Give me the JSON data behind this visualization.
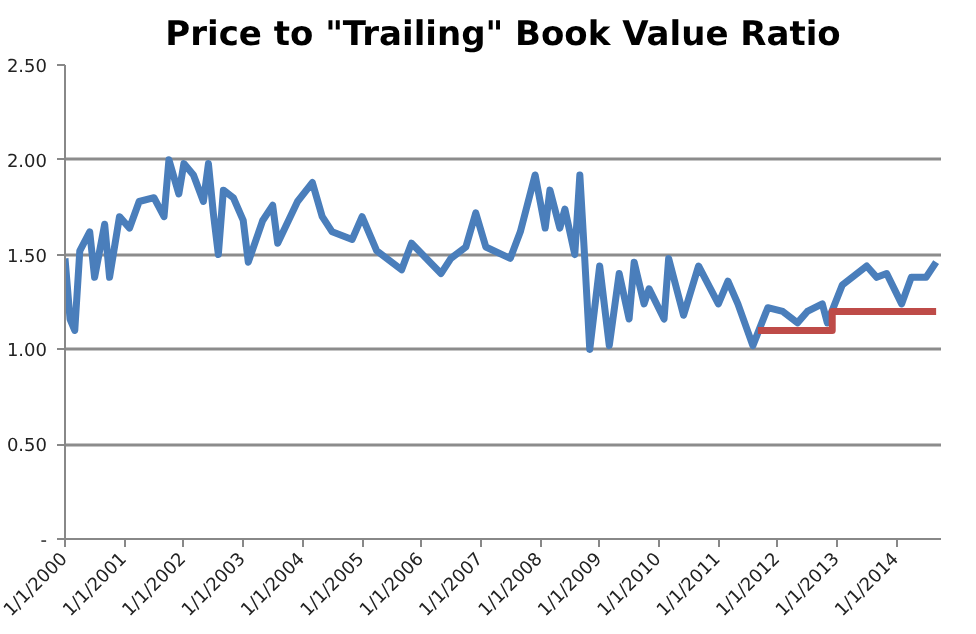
{
  "chart_data": {
    "type": "line",
    "title": "Price to \"Trailing\" Book Value Ratio",
    "series": [
      {
        "color": "#4a7ebb",
        "x": [
          "2000-01",
          "2000-02",
          "2000-03",
          "2000-04",
          "2000-06",
          "2000-07",
          "2000-09",
          "2000-10",
          "2000-12",
          "2001-02",
          "2001-04",
          "2001-07",
          "2001-09",
          "2001-10",
          "2001-12",
          "2002-01",
          "2002-03",
          "2002-05",
          "2002-06",
          "2002-07",
          "2002-08",
          "2002-09",
          "2002-11",
          "2003-01",
          "2003-02",
          "2003-05",
          "2003-07",
          "2003-08",
          "2003-12",
          "2004-03",
          "2004-05",
          "2004-07",
          "2004-11",
          "2005-01",
          "2005-04",
          "2005-09",
          "2005-11",
          "2006-05",
          "2006-07",
          "2006-10",
          "2006-12",
          "2007-02",
          "2007-07",
          "2007-09",
          "2007-12",
          "2008-02",
          "2008-03",
          "2008-05",
          "2008-06",
          "2008-08",
          "2008-09",
          "2008-10",
          "2008-11",
          "2009-01",
          "2009-03",
          "2009-05",
          "2009-07",
          "2009-08",
          "2009-10",
          "2009-11",
          "2010-02",
          "2010-03",
          "2010-06",
          "2010-09",
          "2011-01",
          "2011-03",
          "2011-05",
          "2011-08",
          "2011-11",
          "2012-02",
          "2012-05",
          "2012-07",
          "2012-10",
          "2012-11",
          "2013-02",
          "2013-07",
          "2013-09",
          "2013-11",
          "2014-02",
          "2014-04",
          "2014-07",
          "2014-09"
        ],
        "values": [
          1.48,
          1.16,
          1.1,
          1.52,
          1.62,
          1.38,
          1.66,
          1.38,
          1.7,
          1.64,
          1.78,
          1.8,
          1.7,
          2.0,
          1.82,
          1.98,
          1.92,
          1.78,
          1.98,
          1.72,
          1.5,
          1.84,
          1.8,
          1.68,
          1.46,
          1.68,
          1.76,
          1.56,
          1.78,
          1.88,
          1.7,
          1.62,
          1.58,
          1.7,
          1.52,
          1.42,
          1.56,
          1.4,
          1.48,
          1.54,
          1.72,
          1.54,
          1.48,
          1.62,
          1.92,
          1.64,
          1.84,
          1.64,
          1.74,
          1.5,
          1.92,
          1.48,
          1.0,
          1.44,
          1.02,
          1.4,
          1.16,
          1.46,
          1.24,
          1.32,
          1.16,
          1.48,
          1.18,
          1.44,
          1.24,
          1.36,
          1.24,
          1.02,
          1.22,
          1.2,
          1.14,
          1.2,
          1.24,
          1.14,
          1.34,
          1.44,
          1.38,
          1.4,
          1.24,
          1.38,
          1.38,
          1.46
        ]
      },
      {
        "type": "step",
        "color": "#be4b48",
        "x": [
          "2011-09",
          "2012-12",
          "2014-09"
        ],
        "values": [
          1.1,
          1.2,
          1.2
        ]
      }
    ],
    "xlim": [
      "2000-01-01",
      "2014-10-01"
    ],
    "xticks": [
      {
        "value": "2000-01-01",
        "label": "1/1/2000"
      },
      {
        "value": "2001-01-01",
        "label": "1/1/2001"
      },
      {
        "value": "2002-01-01",
        "label": "1/1/2002"
      },
      {
        "value": "2003-01-01",
        "label": "1/1/2003"
      },
      {
        "value": "2004-01-01",
        "label": "1/1/2004"
      },
      {
        "value": "2005-01-01",
        "label": "1/1/2005"
      },
      {
        "value": "2006-01-01",
        "label": "1/1/2006"
      },
      {
        "value": "2007-01-01",
        "label": "1/1/2007"
      },
      {
        "value": "2008-01-01",
        "label": "1/1/2008"
      },
      {
        "value": "2009-01-01",
        "label": "1/1/2009"
      },
      {
        "value": "2010-01-01",
        "label": "1/1/2010"
      },
      {
        "value": "2011-01-01",
        "label": "1/1/2011"
      },
      {
        "value": "2012-01-01",
        "label": "1/1/2012"
      },
      {
        "value": "2013-01-01",
        "label": "1/1/2013"
      },
      {
        "value": "2014-01-01",
        "label": "1/1/2014"
      }
    ],
    "ylim": [
      0,
      2.5
    ],
    "yticks": [
      {
        "value": 0,
        "label": "-"
      },
      {
        "value": 0.5,
        "label": "0.50"
      },
      {
        "value": 1.0,
        "label": "1.00"
      },
      {
        "value": 1.5,
        "label": "1.50"
      },
      {
        "value": 2.0,
        "label": "2.00"
      },
      {
        "value": 2.5,
        "label": "2.50"
      }
    ],
    "grid": "y"
  }
}
